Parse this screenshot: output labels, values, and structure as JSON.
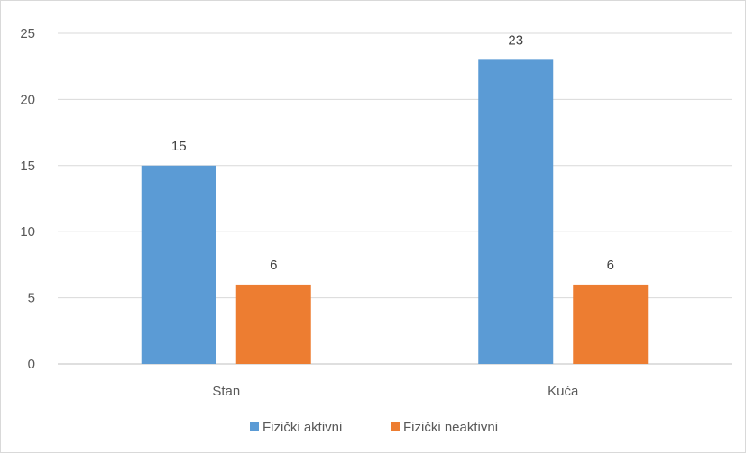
{
  "chart_data": {
    "type": "bar",
    "title": "",
    "xlabel": "",
    "ylabel": "",
    "categories": [
      "Stan",
      "Kuća"
    ],
    "series": [
      {
        "name": "Fizički aktivni",
        "values": [
          15,
          23
        ],
        "color": "#5b9bd5"
      },
      {
        "name": "Fizički neaktivni",
        "values": [
          6,
          6
        ],
        "color": "#ed7d31"
      }
    ],
    "ylim": [
      0,
      25
    ],
    "yticks": [
      "0",
      "5",
      "10",
      "15",
      "20",
      "25"
    ],
    "grid": true,
    "legend_position": "bottom"
  }
}
